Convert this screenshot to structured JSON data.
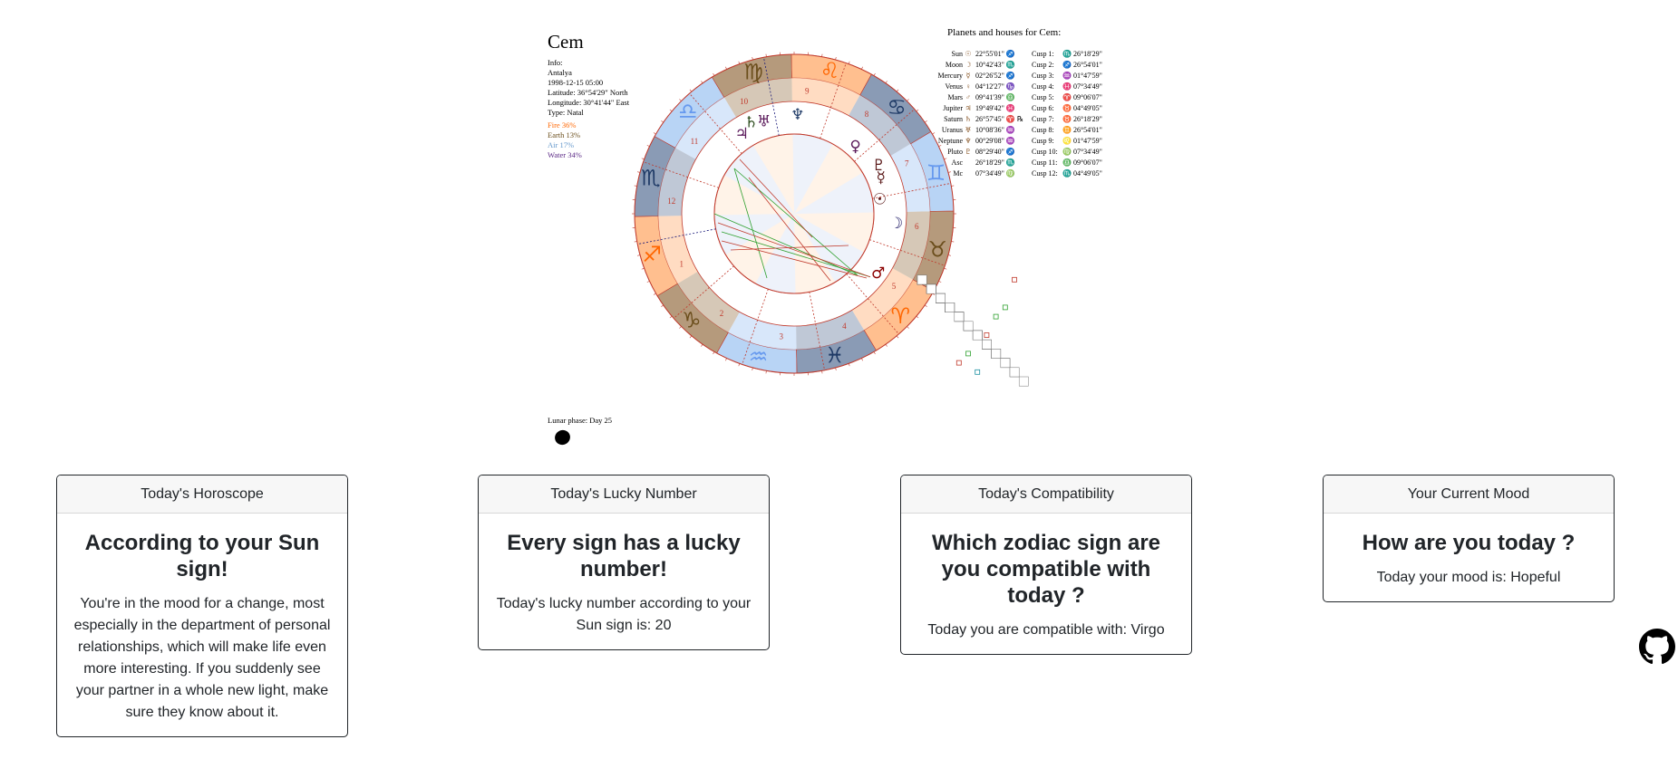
{
  "chart": {
    "name": "Cem",
    "info": {
      "label": "Info:",
      "city": "Antalya",
      "datetime": "1998-12-15 05:00",
      "latitude": "Latitude: 36°54'29\" North",
      "longitude": "Longitude: 30°41'44\" East",
      "type": "Type: Natal"
    },
    "elements": {
      "fire": "Fire 36%",
      "earth": "Earth 13%",
      "air": "Air 17%",
      "water": "Water 34%"
    },
    "lunar_phase": "Lunar phase: Day 25",
    "planets_title": "Planets and houses for Cem:",
    "planets": [
      {
        "name": "Sun",
        "glyph": "☉",
        "pos": "22°55'01\" ♐",
        "cusp": "Cusp 1:",
        "cpos": "♏ 26°18'29\""
      },
      {
        "name": "Moon",
        "glyph": "☽",
        "pos": "10°42'43\" ♏",
        "cusp": "Cusp 2:",
        "cpos": "♐ 26°54'01\""
      },
      {
        "name": "Mercury",
        "glyph": "☿",
        "pos": "02°26'52\" ♐",
        "cusp": "Cusp 3:",
        "cpos": "♒ 01°47'59\""
      },
      {
        "name": "Venus",
        "glyph": "♀",
        "pos": "04°12'27\" ♑",
        "cusp": "Cusp 4:",
        "cpos": "♓ 07°34'49\""
      },
      {
        "name": "Mars",
        "glyph": "♂",
        "pos": "09°41'39\" ♎",
        "cusp": "Cusp 5:",
        "cpos": "♈ 09°06'07\""
      },
      {
        "name": "Jupiter",
        "glyph": "♃",
        "pos": "19°49'42\" ♓",
        "cusp": "Cusp 6:",
        "cpos": "♉ 04°49'05\""
      },
      {
        "name": "Saturn",
        "glyph": "♄",
        "pos": "26°57'45\" ♈ ℞",
        "cusp": "Cusp 7:",
        "cpos": "♉ 26°18'29\""
      },
      {
        "name": "Uranus",
        "glyph": "♅",
        "pos": "10°08'36\" ♒",
        "cusp": "Cusp 8:",
        "cpos": "♊ 26°54'01\""
      },
      {
        "name": "Neptune",
        "glyph": "♆",
        "pos": "00°29'08\" ♒",
        "cusp": "Cusp 9:",
        "cpos": "♌ 01°47'59\""
      },
      {
        "name": "Pluto",
        "glyph": "♇",
        "pos": "08°29'40\" ♐",
        "cusp": "Cusp 10:",
        "cpos": "♍ 07°34'49\""
      },
      {
        "name": "Asc",
        "glyph": "",
        "pos": "26°18'29\" ♏",
        "cusp": "Cusp 11:",
        "cpos": "♎ 09°06'07\""
      },
      {
        "name": "Mc",
        "glyph": "",
        "pos": "07°34'49\" ♍",
        "cusp": "Cusp 12:",
        "cpos": "♏ 04°49'05\""
      }
    ],
    "wheel": {
      "houses": [
        "1",
        "2",
        "3",
        "4",
        "5",
        "6",
        "7",
        "8",
        "9",
        "10",
        "11",
        "12"
      ],
      "signs": [
        {
          "glyph": "♐",
          "color": "#ff6600",
          "fill": "#ffbf8f"
        },
        {
          "glyph": "♑",
          "color": "#6b4e1c",
          "fill": "#b59a7c"
        },
        {
          "glyph": "♒",
          "color": "#6699ee",
          "fill": "#b8d4f5"
        },
        {
          "glyph": "♓",
          "color": "#1f3a66",
          "fill": "#8a9bb5"
        },
        {
          "glyph": "♈",
          "color": "#ff6600",
          "fill": "#ffbf8f"
        },
        {
          "glyph": "♉",
          "color": "#6b4e1c",
          "fill": "#b59a7c"
        },
        {
          "glyph": "♊",
          "color": "#6699ee",
          "fill": "#b8d4f5"
        },
        {
          "glyph": "♋",
          "color": "#1f3a66",
          "fill": "#8a9bb5"
        },
        {
          "glyph": "♌",
          "color": "#ff6600",
          "fill": "#ffbf8f"
        },
        {
          "glyph": "♍",
          "color": "#6b4e1c",
          "fill": "#b59a7c"
        },
        {
          "glyph": "♎",
          "color": "#6699ee",
          "fill": "#b8d4f5"
        },
        {
          "glyph": "♏",
          "color": "#1f3a66",
          "fill": "#8a9bb5"
        }
      ],
      "planet_glyphs": [
        {
          "glyph": "♂",
          "color": "#8b0000"
        },
        {
          "glyph": "☽",
          "color": "#1f1a66"
        },
        {
          "glyph": "☿",
          "color": "#5b1a1a"
        },
        {
          "glyph": "♇",
          "color": "#5b1a1a"
        },
        {
          "glyph": "☉",
          "color": "#5b1a1a"
        },
        {
          "glyph": "♀",
          "color": "#5b1a5b"
        },
        {
          "glyph": "♆",
          "color": "#1f3a66"
        },
        {
          "glyph": "♅",
          "color": "#5b1a5b"
        },
        {
          "glyph": "♃",
          "color": "#5b1a5b"
        },
        {
          "glyph": "♄",
          "color": "#2a4a1a"
        }
      ]
    }
  },
  "cards": [
    {
      "header": "Today's Horoscope",
      "title": "According to your Sun sign!",
      "text": "You're in the mood for a change, most especially in the department of personal relationships, which will make life even more interesting. If you suddenly see your partner in a whole new light, make sure they know about it."
    },
    {
      "header": "Today's Lucky Number",
      "title": "Every sign has a lucky number!",
      "text": "Today's lucky number according to your Sun sign is: 20"
    },
    {
      "header": "Today's Compatibility",
      "title": "Which zodiac sign are you compatible with today ?",
      "text": "Today you are compatible with: Virgo"
    },
    {
      "header": "Your Current Mood",
      "title": "How are you today ?",
      "text": "Today your mood is: Hopeful"
    }
  ],
  "github_icon": "github-icon"
}
